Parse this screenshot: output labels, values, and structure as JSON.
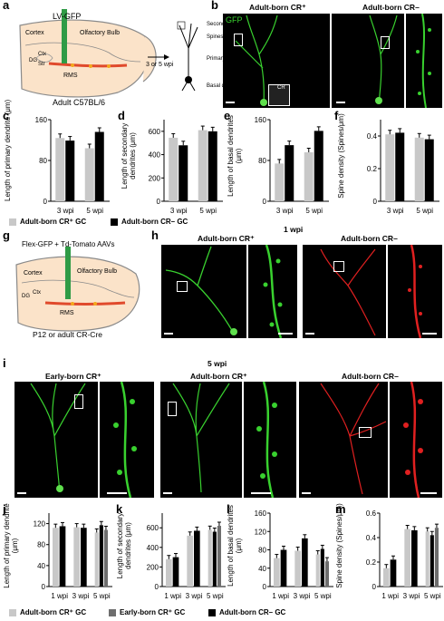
{
  "panel_labels": {
    "a": "a",
    "b": "b",
    "c": "c",
    "d": "d",
    "e": "e",
    "f": "f",
    "g": "g",
    "h": "h",
    "i": "i",
    "j": "j",
    "k": "k",
    "l": "l",
    "m": "m"
  },
  "a": {
    "virus": "LV-GFP",
    "cortex": "Cortex",
    "ob": "Olfactory Bulb",
    "rms": "RMS",
    "dg": "DG",
    "ctx_abbr": "Ctx",
    "str": "Str",
    "mouse": "Adult C57BL/6",
    "arrow": "3 or 5 wpi",
    "secondary": "Secondary dendrites",
    "spines": "Spines",
    "primary": "Primary dendrite",
    "basal": "Basal dendrites"
  },
  "b": {
    "gfp": "GFP",
    "cr_pos": "Adult-born CR⁺",
    "cr_neg": "Adult-born CR–",
    "cr_inset": "CR"
  },
  "g": {
    "virus": "Flex-GFP + Td-Tomato AAVs",
    "cortex": "Cortex",
    "ob": "Olfactory Bulb",
    "rms": "RMS",
    "dg": "DG",
    "ctx_abbr": "Ctx",
    "mouse": "P12 or adult CR-Cre"
  },
  "h": {
    "time": "1 wpi",
    "cr_pos": "Adult-born CR⁺",
    "cr_neg": "Adult-born CR–"
  },
  "i": {
    "time": "5 wpi",
    "early": "Early-born CR⁺",
    "cr_pos": "Adult-born CR⁺",
    "cr_neg": "Adult-born CR–"
  },
  "legend1": {
    "pos": "Adult-born CR⁺ GC",
    "neg": "Adult-born CR– GC"
  },
  "legend2": {
    "pos": "Adult-born CR⁺ GC",
    "early": "Early-born CR⁺ GC",
    "neg": "Adult-born CR– GC"
  },
  "colors": {
    "adult_pos": "#c8c8c8",
    "early_pos": "#6e6e6e",
    "adult_neg": "#000000",
    "gfp": "#39d12f",
    "tomato": "#e02020"
  },
  "chart_data": [
    {
      "panel": "c",
      "type": "bar",
      "categories": [
        "3 wpi",
        "5 wpi"
      ],
      "ylabel": "Length of primary dendrite (μm)",
      "ylim": [
        0,
        160
      ],
      "yticks": [
        "0",
        "80",
        "160"
      ],
      "series": [
        {
          "name": "Adult-born CR⁺ GC",
          "values": [
            124,
            104
          ]
        },
        {
          "name": "Adult-born CR– GC",
          "values": [
            119,
            136
          ]
        }
      ]
    },
    {
      "panel": "d",
      "type": "bar",
      "categories": [
        "3 wpi",
        "5 wpi"
      ],
      "ylabel": "Length of secondary dendrites (μm)",
      "ylim": [
        0,
        700
      ],
      "yticks": [
        "0",
        "200",
        "400",
        "600"
      ],
      "series": [
        {
          "name": "Adult-born CR⁺ GC",
          "values": [
            545,
            610
          ]
        },
        {
          "name": "Adult-born CR– GC",
          "values": [
            480,
            600
          ]
        }
      ]
    },
    {
      "panel": "e",
      "type": "bar",
      "categories": [
        "3 wpi",
        "5 wpi"
      ],
      "ylabel": "Length of basal dendrites (μm)",
      "ylim": [
        0,
        160
      ],
      "yticks": [
        "0",
        "80",
        "160"
      ],
      "series": [
        {
          "name": "Adult-born CR⁺ GC",
          "values": [
            74,
            96
          ]
        },
        {
          "name": "Adult-born CR– GC",
          "values": [
            110,
            138
          ]
        }
      ]
    },
    {
      "panel": "f",
      "type": "bar",
      "categories": [
        "3 wpi",
        "5 wpi"
      ],
      "ylabel": "Spine density (Spines/μm)",
      "ylim": [
        0,
        0.5
      ],
      "yticks": [
        "0",
        "0.2",
        "0.4"
      ],
      "series": [
        {
          "name": "Adult-born CR⁺ GC",
          "values": [
            0.41,
            0.39
          ]
        },
        {
          "name": "Adult-born CR– GC",
          "values": [
            0.42,
            0.38
          ]
        }
      ]
    },
    {
      "panel": "j",
      "type": "bar",
      "categories": [
        "1 wpi",
        "3 wpi",
        "5 wpi"
      ],
      "ylabel": "Length of primary dendrite (μm)",
      "ylim": [
        0,
        140
      ],
      "yticks": [
        "0",
        "40",
        "80",
        "120"
      ],
      "series": [
        {
          "name": "Adult-born CR⁺ GC",
          "values": [
            112,
            113,
            103
          ]
        },
        {
          "name": "Adult-born CR– GC",
          "values": [
            115,
            112,
            117
          ]
        },
        {
          "name": "Early-born CR⁺ GC",
          "values": [
            null,
            null,
            108
          ]
        }
      ]
    },
    {
      "panel": "k",
      "type": "bar",
      "categories": [
        "1 wpi",
        "3 wpi",
        "5 wpi"
      ],
      "ylabel": "Length of secondary dendrites (μm)",
      "ylim": [
        0,
        750
      ],
      "yticks": [
        "0",
        "200",
        "400",
        "600"
      ],
      "series": [
        {
          "name": "Adult-born CR⁺ GC",
          "values": [
            280,
            520,
            580
          ]
        },
        {
          "name": "Adult-born CR– GC",
          "values": [
            300,
            570,
            560
          ]
        },
        {
          "name": "Early-born CR⁺ GC",
          "values": [
            null,
            null,
            620
          ]
        }
      ]
    },
    {
      "panel": "l",
      "type": "bar",
      "categories": [
        "1 wpi",
        "3 wpi",
        "5 wpi"
      ],
      "ylabel": "Length of basal dendrites (μm)",
      "ylim": [
        0,
        160
      ],
      "yticks": [
        "0",
        "40",
        "80",
        "120",
        "160"
      ],
      "series": [
        {
          "name": "Adult-born CR⁺ GC",
          "values": [
            62,
            78,
            70
          ]
        },
        {
          "name": "Adult-born CR– GC",
          "values": [
            80,
            105,
            82
          ]
        },
        {
          "name": "Early-born CR⁺ GC",
          "values": [
            null,
            null,
            55
          ]
        }
      ]
    },
    {
      "panel": "m",
      "type": "bar",
      "categories": [
        "1 wpi",
        "3 wpi",
        "5 wpi"
      ],
      "ylabel": "Spine density (Spines/μm)",
      "ylim": [
        0,
        0.6
      ],
      "yticks": [
        "0",
        "0.2",
        "0.4",
        "0.6"
      ],
      "series": [
        {
          "name": "Adult-born CR⁺ GC",
          "values": [
            0.15,
            0.47,
            0.45
          ]
        },
        {
          "name": "Adult-born CR– GC",
          "values": [
            0.22,
            0.46,
            0.42
          ]
        },
        {
          "name": "Early-born CR⁺ GC",
          "values": [
            null,
            null,
            0.48
          ]
        }
      ]
    }
  ]
}
